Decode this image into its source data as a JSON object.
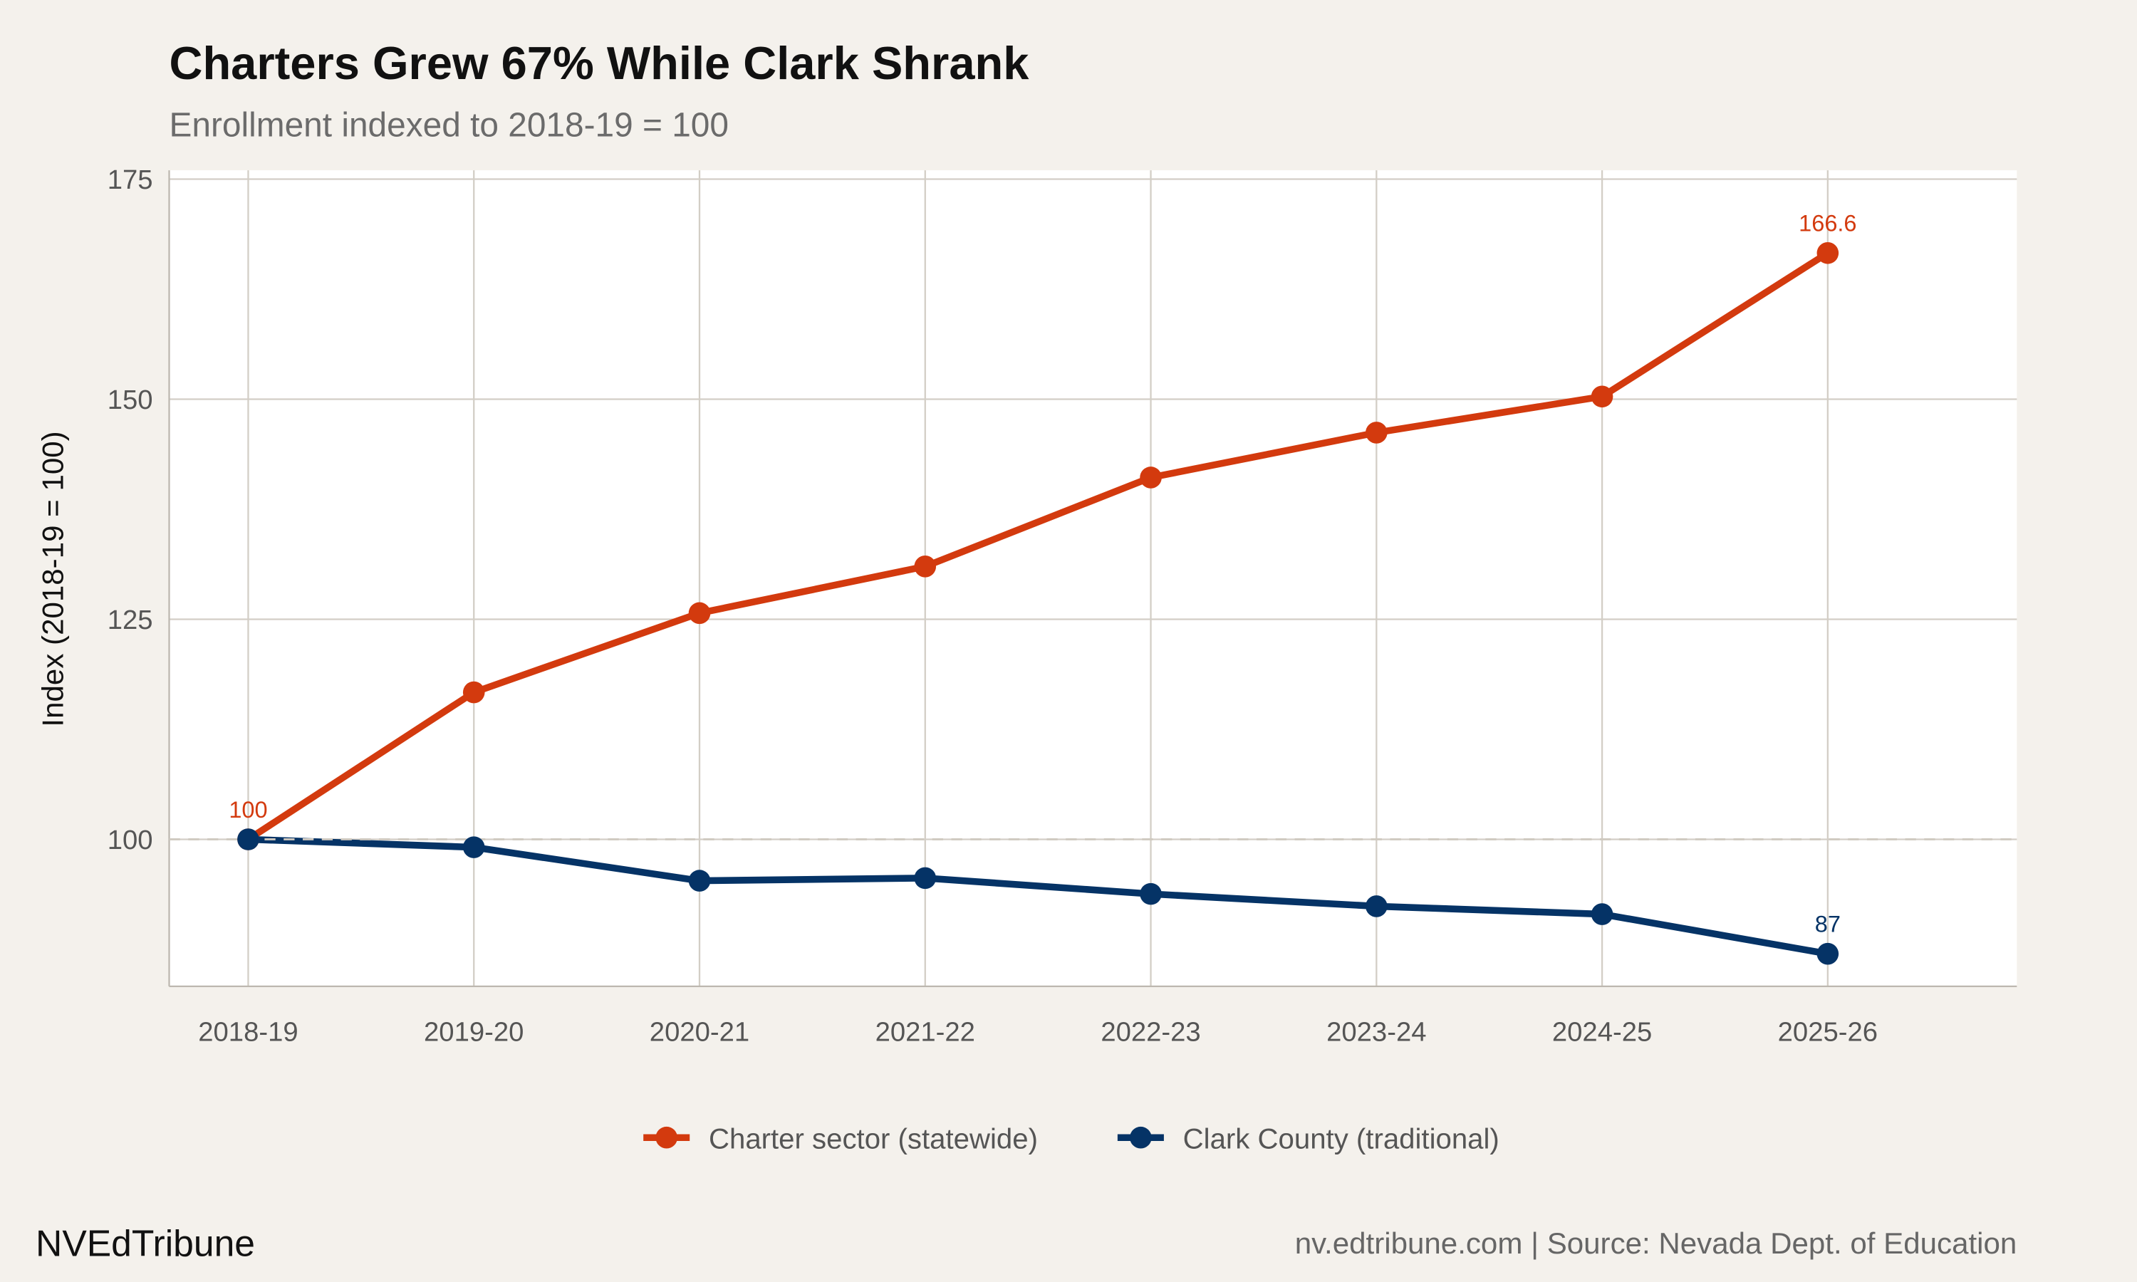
{
  "chart_data": {
    "type": "line",
    "title": "Charters Grew 67% While Clark Shrank",
    "subtitle": "Enrollment indexed to 2018-19 = 100",
    "xlabel": "",
    "ylabel": "Index (2018-19 = 100)",
    "categories": [
      "2018-19",
      "2019-20",
      "2020-21",
      "2021-22",
      "2022-23",
      "2023-24",
      "2024-25",
      "2025-26"
    ],
    "ylim": [
      83.3,
      176
    ],
    "yticks": [
      100,
      125,
      150,
      175
    ],
    "grid": true,
    "reference_line": {
      "y": 100,
      "style": "dashed"
    },
    "legend_position": "bottom",
    "series": [
      {
        "name": "Charter sector (statewide)",
        "color": "#D33A0E",
        "values": [
          100,
          116.7,
          125.7,
          131.0,
          141.1,
          146.2,
          150.3,
          166.6
        ],
        "labels": {
          "0": "100",
          "7": "166.6"
        }
      },
      {
        "name": "Clark County (traditional)",
        "color": "#053366",
        "values": [
          100,
          99.1,
          95.3,
          95.6,
          93.8,
          92.4,
          91.5,
          87.0
        ],
        "labels": {
          "7": "87"
        }
      }
    ]
  },
  "footer": {
    "brand": "NVEdTribune",
    "source": "nv.edtribune.com | Source: Nevada Dept. of Education"
  }
}
